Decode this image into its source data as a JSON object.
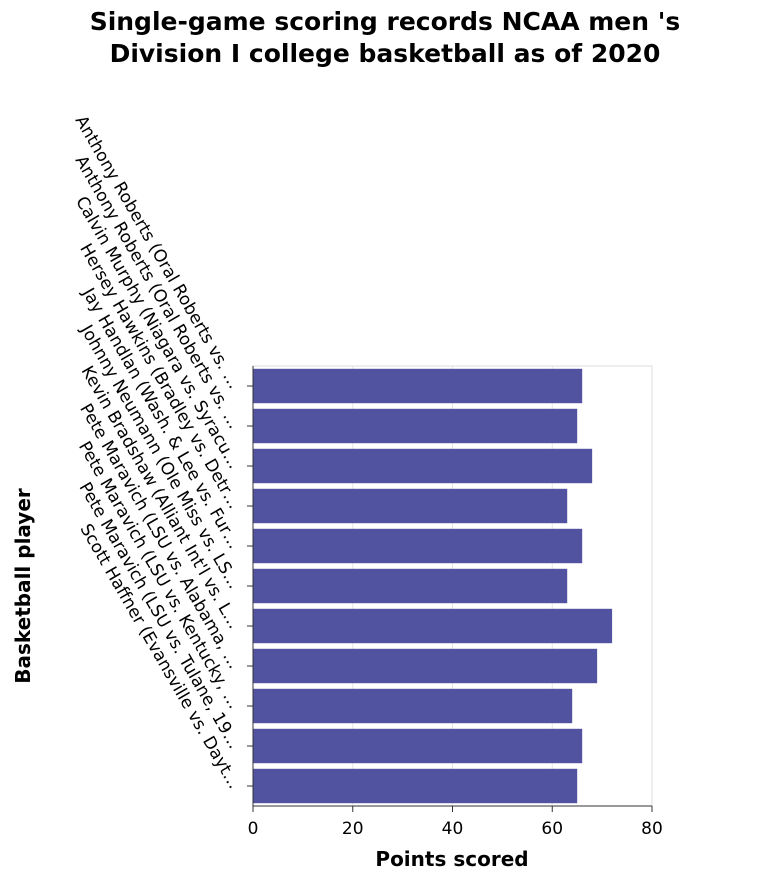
{
  "chart_data": {
    "type": "bar",
    "orientation": "horizontal",
    "title": [
      "Single-game scoring records NCAA men 's",
      "Division I college basketball as of 2020"
    ],
    "xlabel": "Points scored",
    "ylabel": "Basketball player",
    "xlim": [
      0,
      80
    ],
    "xticks": [
      0,
      20,
      40,
      60,
      80
    ],
    "grid": true,
    "bar_color": "#5153a0",
    "categories": [
      "Anthony Roberts (Oral Roberts vs. …",
      "Anthony Roberts (Oral Roberts vs. …",
      "Calvin Murphy (Niagara vs. Syracu…",
      "Hersey Hawkins (Bradley vs. Detr…",
      "Jay Handlan (Wash. & Lee vs. Fur…",
      "Johnny Neumann (Ole Miss vs. LS…",
      "Kevin Bradshaw (Alliant Int'l vs. L…",
      "Pete Maravich (LSU vs. Alabama, …",
      "Pete Maravich (LSU vs. Kentucky, …",
      "Pete Maravich (LSU vs. Tulane, 19…",
      "Scott Haffner (Evansville vs. Dayt…"
    ],
    "values": [
      66,
      65,
      68,
      63,
      66,
      63,
      72,
      69,
      64,
      66,
      65
    ]
  }
}
